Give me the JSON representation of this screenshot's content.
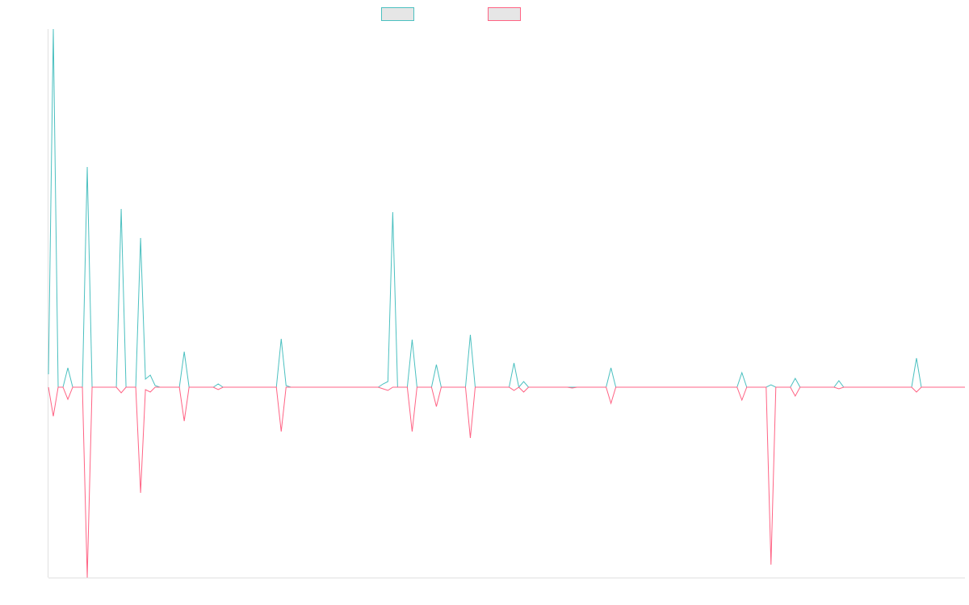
{
  "chart_data": {
    "type": "line",
    "ylim": [
      -236,
      444
    ],
    "grid": false,
    "legend": "top",
    "series": [
      {
        "color": "#4bc0c0",
        "values": [
          16,
          444,
          0,
          0,
          24,
          0,
          0,
          0,
          273,
          0,
          0,
          0,
          0,
          0,
          0,
          221,
          0,
          0,
          0,
          185,
          10,
          15,
          2,
          0,
          0,
          0,
          0,
          0,
          44,
          0,
          0,
          0,
          0,
          0,
          0,
          4,
          0,
          0,
          0,
          0,
          0,
          0,
          0,
          0,
          0,
          0,
          0,
          0,
          60,
          2,
          0,
          0,
          0,
          0,
          0,
          0,
          0,
          0,
          0,
          0,
          0,
          0,
          0,
          0,
          0,
          0,
          0,
          0,
          0,
          4,
          7,
          217,
          0,
          0,
          0,
          59,
          0,
          0,
          0,
          0,
          28,
          0,
          0,
          0,
          0,
          0,
          0,
          65,
          0,
          0,
          0,
          0,
          0,
          0,
          0,
          0,
          30,
          0,
          7,
          0,
          0,
          0,
          0,
          0,
          0,
          0,
          0,
          0,
          0,
          0,
          0,
          0,
          0,
          0,
          0,
          0,
          24,
          0,
          0,
          0,
          0,
          0,
          0,
          0,
          0,
          0,
          0,
          0,
          0,
          0,
          0,
          0,
          0,
          0,
          0,
          0,
          0,
          0,
          0,
          0,
          0,
          0,
          0,
          18,
          0,
          0,
          0,
          0,
          0,
          3,
          0,
          0,
          0,
          0,
          11,
          0,
          0,
          0,
          0,
          0,
          0,
          0,
          0,
          8,
          0,
          0,
          0,
          0,
          0,
          0,
          0,
          0,
          0,
          0,
          0,
          0,
          0,
          0,
          0,
          36,
          0,
          0,
          0,
          0,
          0,
          0,
          0,
          0,
          0,
          0
        ]
      },
      {
        "color": "#ff6384",
        "values": [
          0,
          -36,
          0,
          0,
          -15,
          0,
          0,
          0,
          -236,
          0,
          0,
          0,
          0,
          0,
          0,
          -7,
          0,
          0,
          0,
          -131,
          -3,
          -6,
          0,
          0,
          0,
          0,
          0,
          0,
          -42,
          0,
          0,
          0,
          0,
          0,
          0,
          -3,
          0,
          0,
          0,
          0,
          0,
          0,
          0,
          0,
          0,
          0,
          0,
          0,
          -55,
          0,
          0,
          0,
          0,
          0,
          0,
          0,
          0,
          0,
          0,
          0,
          0,
          0,
          0,
          0,
          0,
          0,
          0,
          0,
          0,
          -2,
          -4,
          0,
          0,
          0,
          0,
          -55,
          0,
          0,
          0,
          0,
          -24,
          0,
          0,
          0,
          0,
          0,
          0,
          -63,
          0,
          0,
          0,
          0,
          0,
          0,
          0,
          0,
          -4,
          0,
          -6,
          0,
          0,
          0,
          0,
          0,
          0,
          0,
          0,
          0,
          -1,
          0,
          0,
          0,
          0,
          0,
          0,
          0,
          -20,
          0,
          0,
          0,
          0,
          0,
          0,
          0,
          0,
          0,
          0,
          0,
          0,
          0,
          0,
          0,
          0,
          0,
          0,
          0,
          0,
          0,
          0,
          0,
          0,
          0,
          0,
          -16,
          0,
          0,
          0,
          0,
          0,
          -220,
          0,
          0,
          0,
          0,
          -11,
          0,
          0,
          0,
          0,
          0,
          0,
          0,
          0,
          -2,
          0,
          0,
          0,
          0,
          0,
          0,
          0,
          0,
          0,
          0,
          0,
          0,
          0,
          0,
          0,
          -6,
          0,
          0,
          0,
          0,
          0,
          0,
          0,
          0,
          0,
          0
        ]
      }
    ]
  }
}
